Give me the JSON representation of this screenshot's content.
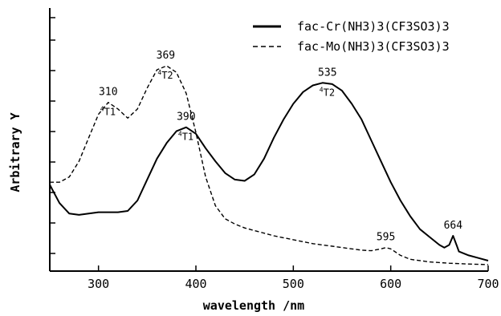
{
  "chart_data": {
    "type": "line",
    "xlabel": "wavelength /nm",
    "ylabel": "Arbitrary Y",
    "xlim": [
      250,
      700
    ],
    "ylim": [
      0,
      1.0
    ],
    "x_ticks": [
      300,
      400,
      500,
      600,
      700
    ],
    "y_ticks": "unlabeled (9 minor ticks)",
    "grid": false,
    "legend_position": "top-right",
    "series": [
      {
        "name": "fac-Cr(NH3)3(CF3SO3)3",
        "style": "solid",
        "x": [
          250,
          260,
          270,
          280,
          290,
          300,
          310,
          320,
          330,
          340,
          350,
          360,
          370,
          380,
          390,
          400,
          410,
          420,
          430,
          440,
          450,
          460,
          470,
          480,
          490,
          500,
          510,
          520,
          530,
          540,
          550,
          560,
          570,
          580,
          590,
          600,
          610,
          620,
          630,
          640,
          650,
          655,
          660,
          664,
          668,
          670,
          680,
          690,
          700
        ],
        "values": [
          0.33,
          0.26,
          0.22,
          0.215,
          0.22,
          0.225,
          0.225,
          0.225,
          0.23,
          0.27,
          0.35,
          0.43,
          0.49,
          0.535,
          0.55,
          0.525,
          0.47,
          0.42,
          0.375,
          0.35,
          0.345,
          0.37,
          0.43,
          0.51,
          0.58,
          0.64,
          0.685,
          0.71,
          0.72,
          0.715,
          0.69,
          0.64,
          0.58,
          0.5,
          0.42,
          0.34,
          0.27,
          0.21,
          0.16,
          0.13,
          0.1,
          0.09,
          0.1,
          0.135,
          0.095,
          0.075,
          0.06,
          0.05,
          0.04
        ]
      },
      {
        "name": "fac-Mo(NH3)3(CF3SO3)3",
        "style": "dashed",
        "x": [
          250,
          260,
          270,
          280,
          290,
          300,
          310,
          320,
          330,
          340,
          350,
          360,
          370,
          380,
          390,
          400,
          410,
          420,
          430,
          440,
          450,
          460,
          470,
          480,
          500,
          520,
          540,
          560,
          570,
          580,
          590,
          595,
          600,
          610,
          620,
          640,
          660,
          680,
          700
        ],
        "values": [
          0.34,
          0.34,
          0.36,
          0.42,
          0.51,
          0.6,
          0.645,
          0.62,
          0.585,
          0.62,
          0.7,
          0.77,
          0.785,
          0.76,
          0.68,
          0.53,
          0.36,
          0.25,
          0.2,
          0.18,
          0.165,
          0.155,
          0.145,
          0.135,
          0.12,
          0.105,
          0.095,
          0.085,
          0.08,
          0.078,
          0.085,
          0.09,
          0.085,
          0.06,
          0.045,
          0.035,
          0.03,
          0.027,
          0.025
        ]
      }
    ],
    "annotations": [
      {
        "text": "310",
        "x": 310,
        "y": 0.645,
        "band": "T1",
        "sup": "4"
      },
      {
        "text": "369",
        "x": 369,
        "y": 0.785,
        "band": "T2",
        "sup": "4"
      },
      {
        "text": "390",
        "x": 390,
        "y": 0.55,
        "band": "T1",
        "sup": "4"
      },
      {
        "text": "535",
        "x": 535,
        "y": 0.72,
        "band": "T2",
        "sup": "4"
      },
      {
        "text": "595",
        "x": 595,
        "y": 0.09,
        "band": "",
        "sup": ""
      },
      {
        "text": "664",
        "x": 664,
        "y": 0.135,
        "band": "",
        "sup": ""
      }
    ]
  }
}
